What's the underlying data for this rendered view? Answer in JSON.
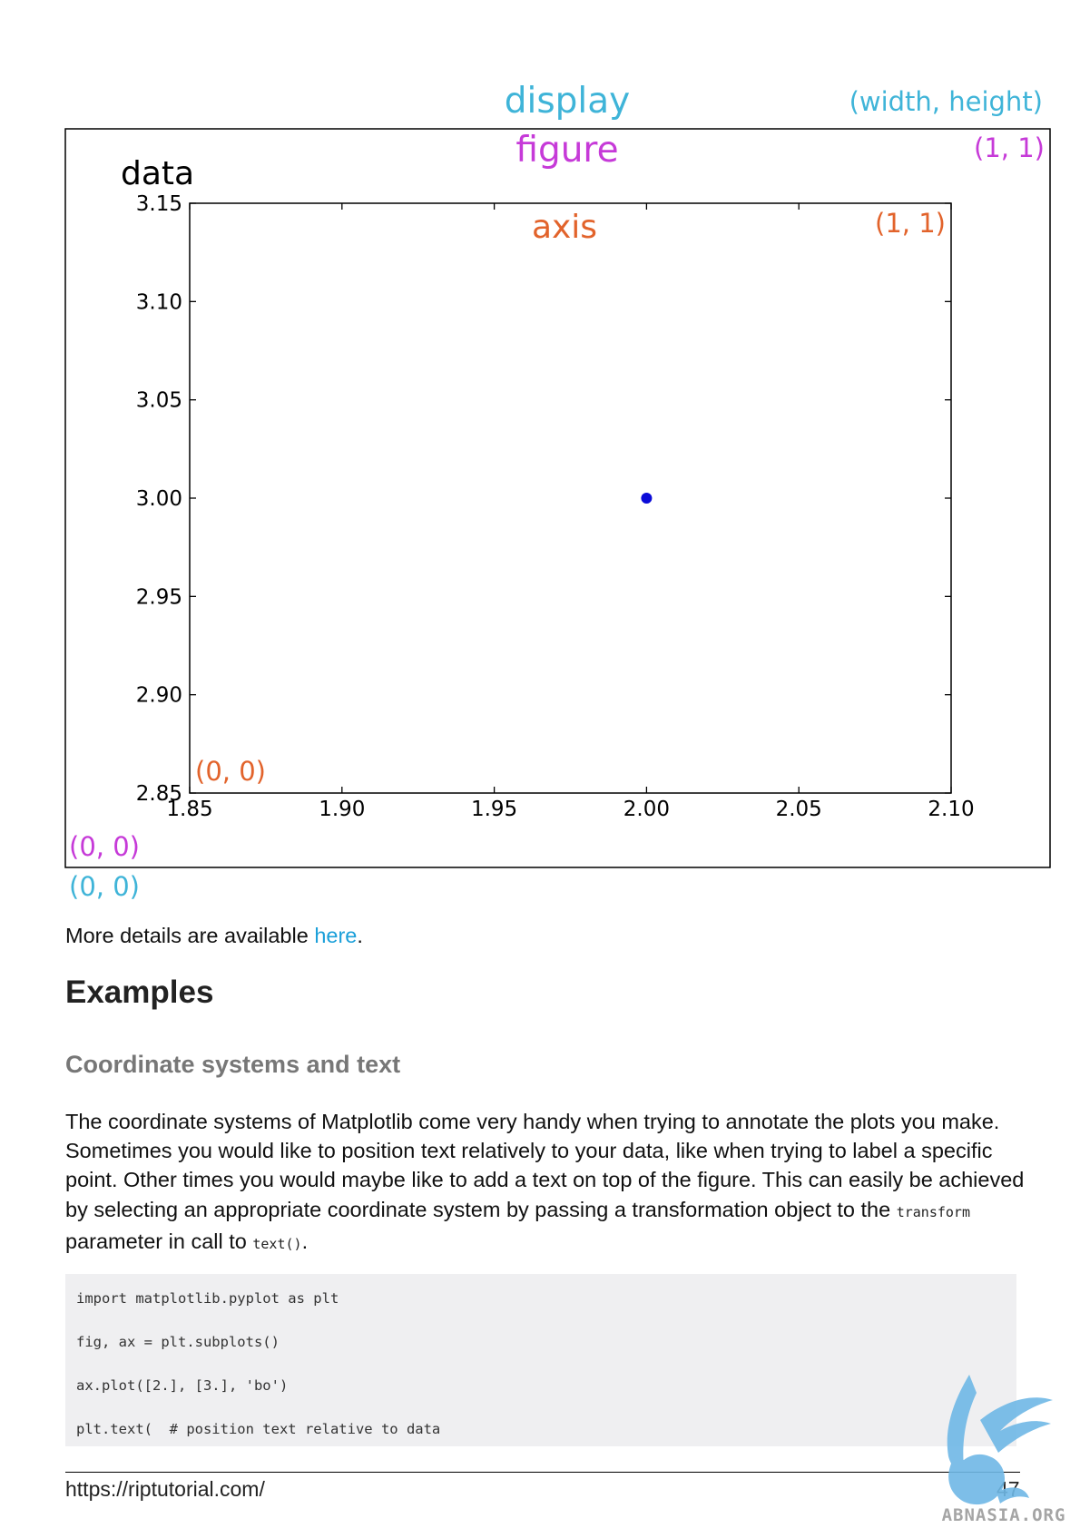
{
  "figure": {
    "labels": {
      "display": "display",
      "figure": "figure",
      "axis": "axis",
      "data": "data",
      "display_top_right": "(width, height)",
      "figure_top_right": "(1, 1)",
      "axis_top_right": "(1, 1)",
      "axis_bottom_left": "(0, 0)",
      "figure_bottom_left": "(0, 0)",
      "display_bottom_left": "(0, 0)"
    },
    "colors": {
      "display": "#3fb4d8",
      "figure": "#c63ad8",
      "axis": "#e2632b",
      "point": "#0b0bd8"
    }
  },
  "chart_data": {
    "type": "scatter",
    "x": [
      2.0
    ],
    "y": [
      3.0
    ],
    "marker": "bo",
    "xlim": [
      1.85,
      2.1
    ],
    "ylim": [
      2.85,
      3.15
    ],
    "xticks": [
      "1.85",
      "1.90",
      "1.95",
      "2.00",
      "2.05",
      "2.10"
    ],
    "yticks": [
      "2.85",
      "2.90",
      "2.95",
      "3.00",
      "3.05",
      "3.10",
      "3.15"
    ],
    "grid": false
  },
  "content": {
    "more_details_prefix": "More details are available ",
    "more_details_link": "here",
    "more_details_suffix": ".",
    "heading_examples": "Examples",
    "heading_coordinate": "Coordinate systems and text",
    "para_text": "The coordinate systems of Matplotlib come very handy when trying to annotate the plots you make. Sometimes you would like to position text relatively to your data, like when trying to label a specific point. Other times you would maybe like to add a text on top of the figure. This can easily be achieved by selecting an appropriate coordinate system by passing a transformation object to the ",
    "para_code1": "transform",
    "para_mid": " parameter in call to ",
    "para_code2": "text()",
    "para_end": ".",
    "code_lines": [
      "import matplotlib.pyplot as plt",
      "fig, ax = plt.subplots()",
      "ax.plot([2.], [3.], 'bo')",
      "plt.text(  # position text relative to data"
    ]
  },
  "footer": {
    "url": "https://riptutorial.com/",
    "page_number": "47"
  },
  "watermark": {
    "text": "ABNASIA.ORG",
    "icon": "pegasus-logo-icon"
  }
}
